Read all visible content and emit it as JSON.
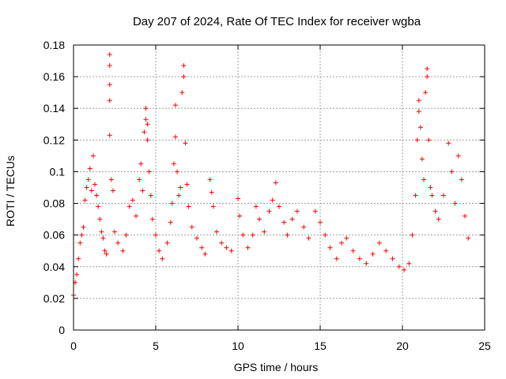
{
  "chart_data": {
    "type": "scatter",
    "title": "Day 207 of 2024, Rate Of TEC Index for receiver wgba",
    "xlabel": "GPS time / hours",
    "ylabel": "ROTI / TECUs",
    "xlim": [
      0,
      25
    ],
    "ylim": [
      0,
      0.18
    ],
    "xticks": [
      0,
      5,
      10,
      15,
      20,
      25
    ],
    "xtick_labels": [
      "0",
      "5",
      "10",
      "15",
      "20",
      "25"
    ],
    "yticks": [
      0,
      0.02,
      0.04,
      0.06,
      0.08,
      0.1,
      0.12,
      0.14,
      0.16,
      0.18
    ],
    "ytick_labels": [
      "0",
      "0.02",
      "0.04",
      "0.06",
      "0.08",
      "0.1",
      "0.12",
      "0.14",
      "0.16",
      "0.18"
    ],
    "grid": true,
    "marker": "+",
    "color": "#ff0000",
    "series": [
      {
        "name": "ROTI",
        "points": [
          [
            0.0,
            0.022
          ],
          [
            0.1,
            0.03
          ],
          [
            0.2,
            0.035
          ],
          [
            0.3,
            0.045
          ],
          [
            0.4,
            0.055
          ],
          [
            0.5,
            0.06
          ],
          [
            0.6,
            0.065
          ],
          [
            0.7,
            0.082
          ],
          [
            0.8,
            0.09
          ],
          [
            0.9,
            0.095
          ],
          [
            1.0,
            0.102
          ],
          [
            1.1,
            0.088
          ],
          [
            1.2,
            0.11
          ],
          [
            1.3,
            0.092
          ],
          [
            1.4,
            0.085
          ],
          [
            1.5,
            0.078
          ],
          [
            1.6,
            0.07
          ],
          [
            1.7,
            0.062
          ],
          [
            1.8,
            0.058
          ],
          [
            1.9,
            0.05
          ],
          [
            2.0,
            0.048
          ],
          [
            2.2,
            0.174
          ],
          [
            2.2,
            0.167
          ],
          [
            2.2,
            0.155
          ],
          [
            2.2,
            0.145
          ],
          [
            2.2,
            0.123
          ],
          [
            2.3,
            0.095
          ],
          [
            2.4,
            0.088
          ],
          [
            2.5,
            0.062
          ],
          [
            2.7,
            0.055
          ],
          [
            3.0,
            0.05
          ],
          [
            3.2,
            0.06
          ],
          [
            3.4,
            0.078
          ],
          [
            3.6,
            0.082
          ],
          [
            3.8,
            0.072
          ],
          [
            4.0,
            0.095
          ],
          [
            4.1,
            0.105
          ],
          [
            4.2,
            0.088
          ],
          [
            4.3,
            0.125
          ],
          [
            4.4,
            0.14
          ],
          [
            4.4,
            0.133
          ],
          [
            4.5,
            0.13
          ],
          [
            4.5,
            0.12
          ],
          [
            4.6,
            0.1
          ],
          [
            4.7,
            0.085
          ],
          [
            4.8,
            0.07
          ],
          [
            5.0,
            0.06
          ],
          [
            5.2,
            0.05
          ],
          [
            5.4,
            0.045
          ],
          [
            5.7,
            0.055
          ],
          [
            5.9,
            0.068
          ],
          [
            6.0,
            0.08
          ],
          [
            6.1,
            0.105
          ],
          [
            6.2,
            0.122
          ],
          [
            6.2,
            0.142
          ],
          [
            6.3,
            0.1
          ],
          [
            6.4,
            0.085
          ],
          [
            6.5,
            0.09
          ],
          [
            6.6,
            0.15
          ],
          [
            6.7,
            0.167
          ],
          [
            6.7,
            0.16
          ],
          [
            6.8,
            0.118
          ],
          [
            6.9,
            0.092
          ],
          [
            7.0,
            0.078
          ],
          [
            7.2,
            0.065
          ],
          [
            7.5,
            0.058
          ],
          [
            7.8,
            0.052
          ],
          [
            8.0,
            0.048
          ],
          [
            8.3,
            0.095
          ],
          [
            8.4,
            0.087
          ],
          [
            8.5,
            0.078
          ],
          [
            8.7,
            0.062
          ],
          [
            9.0,
            0.055
          ],
          [
            9.3,
            0.052
          ],
          [
            9.6,
            0.05
          ],
          [
            10.0,
            0.083
          ],
          [
            10.1,
            0.072
          ],
          [
            10.3,
            0.06
          ],
          [
            10.6,
            0.052
          ],
          [
            10.9,
            0.06
          ],
          [
            11.1,
            0.078
          ],
          [
            11.3,
            0.07
          ],
          [
            11.6,
            0.062
          ],
          [
            11.9,
            0.075
          ],
          [
            12.1,
            0.082
          ],
          [
            12.3,
            0.093
          ],
          [
            12.5,
            0.078
          ],
          [
            12.8,
            0.068
          ],
          [
            13.0,
            0.06
          ],
          [
            13.3,
            0.07
          ],
          [
            13.6,
            0.075
          ],
          [
            14.0,
            0.065
          ],
          [
            14.3,
            0.058
          ],
          [
            14.7,
            0.075
          ],
          [
            15.0,
            0.068
          ],
          [
            15.3,
            0.06
          ],
          [
            15.6,
            0.052
          ],
          [
            16.0,
            0.045
          ],
          [
            16.3,
            0.055
          ],
          [
            16.6,
            0.058
          ],
          [
            17.0,
            0.05
          ],
          [
            17.4,
            0.045
          ],
          [
            17.8,
            0.042
          ],
          [
            18.2,
            0.048
          ],
          [
            18.6,
            0.055
          ],
          [
            19.0,
            0.05
          ],
          [
            19.4,
            0.045
          ],
          [
            19.8,
            0.04
          ],
          [
            20.1,
            0.038
          ],
          [
            20.4,
            0.042
          ],
          [
            20.6,
            0.06
          ],
          [
            20.8,
            0.085
          ],
          [
            20.9,
            0.12
          ],
          [
            21.0,
            0.138
          ],
          [
            21.0,
            0.145
          ],
          [
            21.1,
            0.128
          ],
          [
            21.2,
            0.108
          ],
          [
            21.3,
            0.095
          ],
          [
            21.4,
            0.15
          ],
          [
            21.5,
            0.165
          ],
          [
            21.5,
            0.16
          ],
          [
            21.6,
            0.12
          ],
          [
            21.7,
            0.09
          ],
          [
            21.8,
            0.085
          ],
          [
            22.0,
            0.075
          ],
          [
            22.2,
            0.07
          ],
          [
            22.5,
            0.085
          ],
          [
            22.8,
            0.118
          ],
          [
            23.0,
            0.1
          ],
          [
            23.2,
            0.08
          ],
          [
            23.4,
            0.11
          ],
          [
            23.6,
            0.095
          ],
          [
            23.8,
            0.072
          ],
          [
            24.0,
            0.058
          ]
        ]
      }
    ]
  }
}
